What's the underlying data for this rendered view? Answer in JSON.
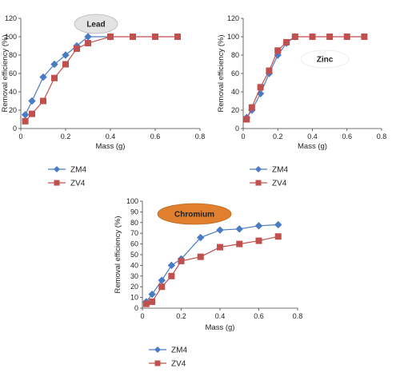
{
  "chart_data": [
    {
      "type": "line",
      "title": "Lead",
      "xlabel": "Mass (g)",
      "ylabel": "Removal efficiency (%)",
      "xlim": [
        0,
        0.8
      ],
      "ylim": [
        0,
        120
      ],
      "xticks": [
        "0",
        "0.2",
        "0.4",
        "0.6",
        "0.8"
      ],
      "yticks": [
        "0",
        "20",
        "40",
        "60",
        "80",
        "100",
        "120"
      ],
      "title_badge_color": "#e3e3e3",
      "legend_position": "bottom",
      "series": [
        {
          "name": "ZM4",
          "color": "#4a7cc4",
          "marker": "diamond",
          "x": [
            0.02,
            0.05,
            0.1,
            0.15,
            0.2,
            0.25,
            0.3,
            0.4
          ],
          "y": [
            15,
            30,
            56,
            70,
            80,
            90,
            100,
            100
          ]
        },
        {
          "name": "ZV4",
          "color": "#c0504d",
          "marker": "square",
          "x": [
            0.02,
            0.05,
            0.1,
            0.15,
            0.2,
            0.25,
            0.3,
            0.4,
            0.5,
            0.6,
            0.7
          ],
          "y": [
            8,
            16,
            30,
            55,
            70,
            87,
            93,
            100,
            100,
            100,
            100
          ]
        }
      ]
    },
    {
      "type": "line",
      "title": "Zinc",
      "xlabel": "Mass (g)",
      "ylabel": "Removal efficiency (%)",
      "xlim": [
        0,
        0.8
      ],
      "ylim": [
        0,
        120
      ],
      "xticks": [
        "0",
        "0.2",
        "0.4",
        "0.6",
        "0.8"
      ],
      "yticks": [
        "0",
        "20",
        "40",
        "60",
        "80",
        "100",
        "120"
      ],
      "title_badge_color": "#ffffff",
      "legend_position": "bottom",
      "series": [
        {
          "name": "ZM4",
          "color": "#4a7cc4",
          "marker": "diamond",
          "x": [
            0.02,
            0.05,
            0.1,
            0.15,
            0.2,
            0.25,
            0.3
          ],
          "y": [
            12,
            20,
            38,
            60,
            80,
            93,
            100
          ]
        },
        {
          "name": "ZV4",
          "color": "#c0504d",
          "marker": "square",
          "x": [
            0.02,
            0.05,
            0.1,
            0.15,
            0.2,
            0.25,
            0.3,
            0.4,
            0.5,
            0.6,
            0.7
          ],
          "y": [
            10,
            23,
            45,
            63,
            85,
            94,
            100,
            100,
            100,
            100,
            100
          ]
        }
      ]
    },
    {
      "type": "line",
      "title": "Chromium",
      "xlabel": "Mass (g)",
      "ylabel": "Removal efficiency (%)",
      "xlim": [
        0,
        0.8
      ],
      "ylim": [
        0,
        100
      ],
      "xticks": [
        "0",
        "0.2",
        "0.4",
        "0.6",
        "0.8"
      ],
      "yticks": [
        "0",
        "10",
        "20",
        "30",
        "40",
        "50",
        "60",
        "70",
        "80",
        "90",
        "100"
      ],
      "title_badge_color": "#e07f2d",
      "legend_position": "bottom",
      "series": [
        {
          "name": "ZM4",
          "color": "#4a7cc4",
          "marker": "diamond",
          "x": [
            0.02,
            0.05,
            0.1,
            0.15,
            0.2,
            0.3,
            0.4,
            0.5,
            0.6,
            0.7
          ],
          "y": [
            6,
            13,
            26,
            40,
            46,
            66,
            73,
            74,
            77,
            78
          ]
        },
        {
          "name": "ZV4",
          "color": "#c0504d",
          "marker": "square",
          "x": [
            0.02,
            0.05,
            0.1,
            0.15,
            0.2,
            0.3,
            0.4,
            0.5,
            0.6,
            0.7
          ],
          "y": [
            4,
            6,
            20,
            30,
            44,
            48,
            57,
            60,
            63,
            67
          ]
        }
      ]
    }
  ]
}
